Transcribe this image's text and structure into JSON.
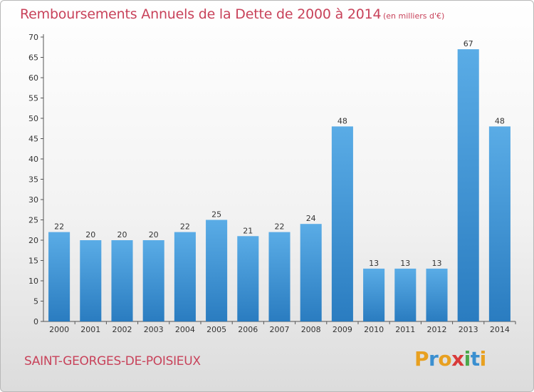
{
  "title": "Remboursements Annuels de la Dette de 2000 à 2014",
  "subtitle": "(en milliers d'€)",
  "town": "SAINT-GEORGES-DE-POISIEUX",
  "logo": {
    "letters": [
      "P",
      "r",
      "o",
      "x",
      "i",
      "t",
      "i"
    ],
    "colors": [
      "#e8a020",
      "#3a8fd0",
      "#e8a020",
      "#d83a3a",
      "#4aa84a",
      "#3a8fd0",
      "#e8a020"
    ]
  },
  "colors": {
    "bar_light": "#5aace6",
    "bar_dark": "#2a7cc0",
    "text_accent": "#c8425a"
  },
  "chart_data": {
    "type": "bar",
    "categories": [
      "2000",
      "2001",
      "2002",
      "2003",
      "2004",
      "2005",
      "2006",
      "2007",
      "2008",
      "2009",
      "2010",
      "2011",
      "2012",
      "2013",
      "2014"
    ],
    "values": [
      22,
      20,
      20,
      20,
      22,
      25,
      21,
      22,
      24,
      48,
      13,
      13,
      13,
      67,
      48
    ],
    "title": "Remboursements Annuels de la Dette de 2000 à 2014",
    "subtitle": "(en milliers d'€)",
    "ylim": [
      0,
      70
    ],
    "yticks": [
      0,
      5,
      10,
      15,
      20,
      25,
      30,
      35,
      40,
      45,
      50,
      55,
      60,
      65,
      70
    ],
    "grid": false,
    "legend": "none"
  }
}
